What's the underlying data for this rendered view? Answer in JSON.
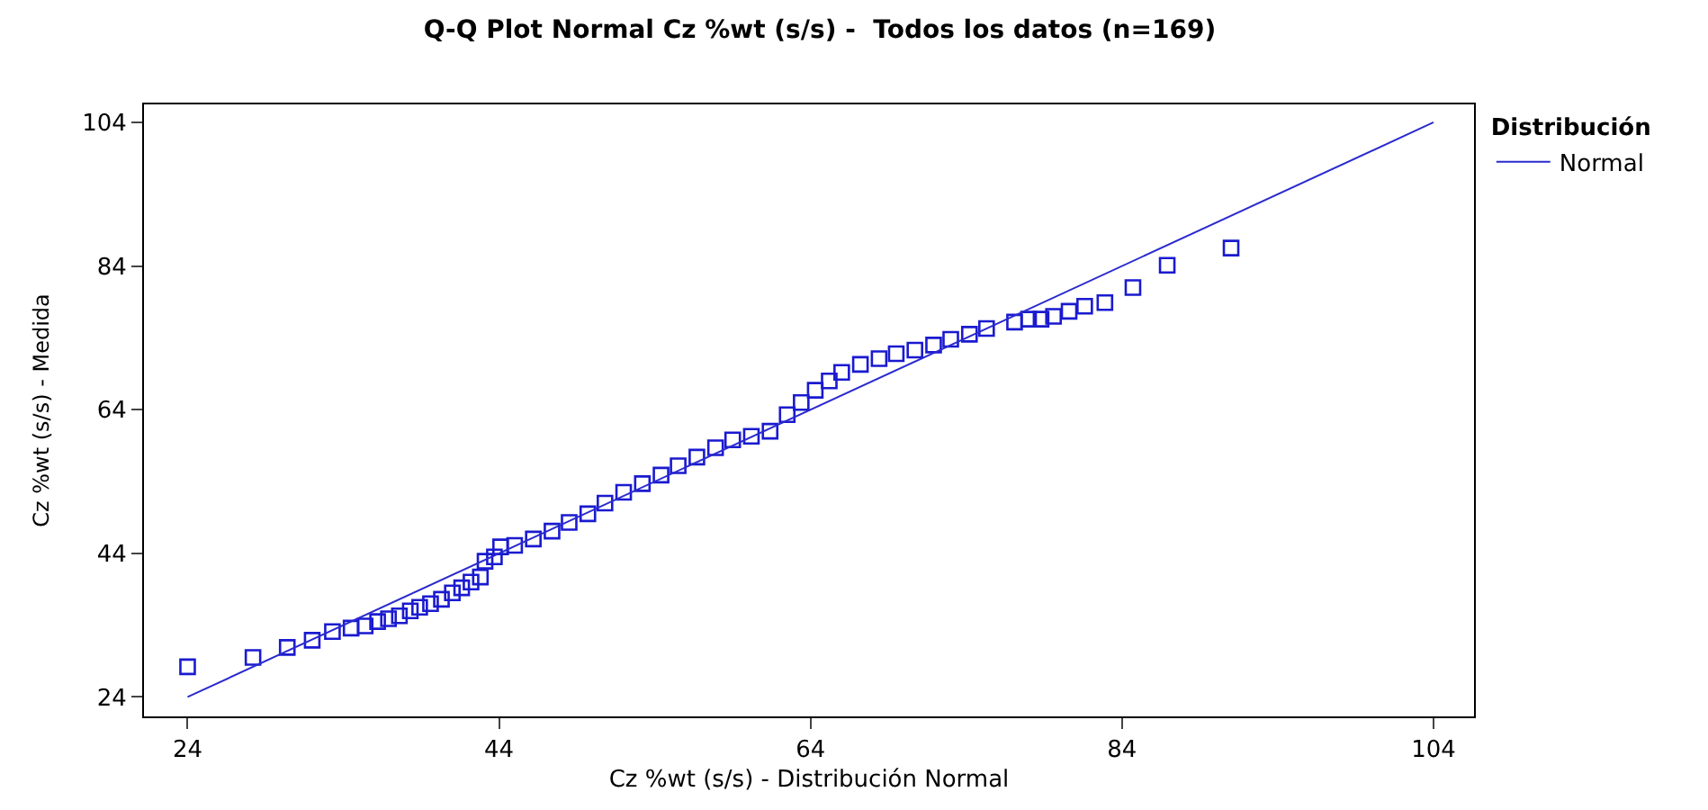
{
  "chart_data": {
    "type": "scatter",
    "title": "Q-Q Plot Normal Cz %wt (s/s) -  Todos los datos (n=169)",
    "xlabel": "Cz %wt (s/s) - Distribución Normal",
    "ylabel": "Cz %wt (s/s) - Medida",
    "legend_title": "Distribución",
    "series": [
      {
        "color": "#1a1ad0",
        "marker": "square",
        "x": [
          24,
          28.2,
          30.4,
          32,
          33.3,
          34.5,
          35.4,
          36.2,
          36.9,
          37.6,
          38.3,
          38.9,
          39.6,
          40.3,
          41,
          41.6,
          42.2,
          42.8,
          43.1,
          43.7,
          44.1,
          45,
          46.2,
          47.4,
          48.5,
          49.7,
          50.8,
          52,
          53.2,
          54.4,
          55.5,
          56.7,
          57.9,
          59,
          60.2,
          61.4,
          62.5,
          63.4,
          64.3,
          65.2,
          66,
          67.2,
          68.4,
          69.5,
          70.7,
          71.9,
          73,
          74.2,
          75.3,
          77.1,
          78,
          78.8,
          79.6,
          80.6,
          81.6,
          82.9,
          84.7,
          86.9,
          91
        ],
        "values": [
          28.2,
          29.5,
          30.9,
          31.9,
          33.1,
          33.6,
          33.9,
          34.5,
          34.9,
          35.3,
          36,
          36.5,
          37,
          37.6,
          38.5,
          39.2,
          40,
          40.7,
          42.9,
          43.5,
          44.9,
          45.1,
          46,
          47.1,
          48.3,
          49.5,
          51,
          52.5,
          53.7,
          54.9,
          56.2,
          57.4,
          58.7,
          59.8,
          60.3,
          61,
          63.3,
          65,
          66.7,
          68,
          69.2,
          70.3,
          71.1,
          71.8,
          72.3,
          73,
          73.8,
          74.5,
          75.3,
          76.2,
          76.6,
          76.6,
          77,
          77.7,
          78.4,
          78.9,
          81,
          84.1,
          86.5
        ]
      },
      {
        "type": "line",
        "name": "Normal",
        "color": "#2a2ad0",
        "line_style": "solid",
        "marker": "none",
        "x": [
          24,
          104
        ],
        "values": [
          24,
          104
        ]
      }
    ],
    "xlim": [
      21.2,
      106.6
    ],
    "ylim": [
      21.3,
      106.5
    ],
    "xticks": [
      24,
      44,
      64,
      84,
      104
    ],
    "yticks": [
      24,
      44,
      64,
      84,
      104
    ],
    "legend": "top right"
  }
}
